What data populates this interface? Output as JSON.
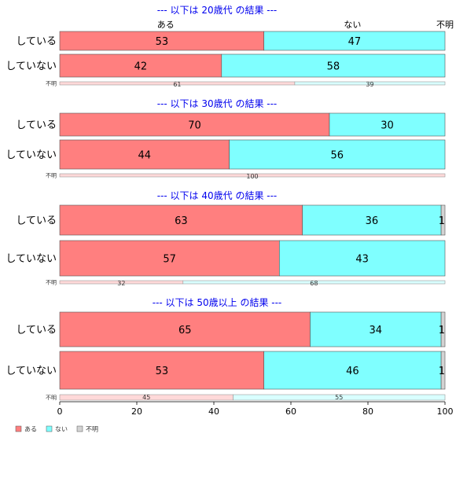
{
  "chart_data": {
    "type": "bar",
    "orientation": "horizontal",
    "stacked": true,
    "percent": true,
    "xlim": [
      0,
      100
    ],
    "xticks": [
      "0",
      "20",
      "40",
      "60",
      "80",
      "100"
    ],
    "column_headers": [
      "ある",
      "ない",
      "不明"
    ],
    "legend": {
      "placement": "bottom-left",
      "items": [
        {
          "label": "ある",
          "color": "#ff7f7f"
        },
        {
          "label": "ない",
          "color": "#7fffff"
        },
        {
          "label": "不明",
          "color": "#d3d3d3"
        }
      ]
    },
    "colors": {
      "aru": "#ff7f7f",
      "nai": "#7fffff",
      "fumei": "#d3d3d3",
      "aru_light": "#ffd9d9",
      "nai_light": "#d9ffff",
      "title": "#0000ee"
    },
    "groups": [
      {
        "title": "--- 以下は 20歳代 の結果 ---",
        "rows": [
          {
            "label": "している",
            "values": [
              53,
              47,
              0
            ],
            "small": false
          },
          {
            "label": "していない",
            "values": [
              42,
              58,
              0
            ],
            "small": false
          },
          {
            "label": "不明",
            "values": [
              61,
              39,
              0
            ],
            "small": true
          }
        ]
      },
      {
        "title": "--- 以下は 30歳代 の結果 ---",
        "rows": [
          {
            "label": "している",
            "values": [
              70,
              30,
              0
            ],
            "small": false
          },
          {
            "label": "していない",
            "values": [
              44,
              56,
              0
            ],
            "small": false
          },
          {
            "label": "不明",
            "values": [
              100,
              0,
              0
            ],
            "small": true
          }
        ]
      },
      {
        "title": "--- 以下は 40歳代 の結果 ---",
        "rows": [
          {
            "label": "している",
            "values": [
              63,
              36,
              1
            ],
            "small": false
          },
          {
            "label": "していない",
            "values": [
              57,
              43,
              0
            ],
            "small": false
          },
          {
            "label": "不明",
            "values": [
              32,
              68,
              0
            ],
            "small": true
          }
        ]
      },
      {
        "title": "--- 以下は 50歳以上 の結果 ---",
        "rows": [
          {
            "label": "している",
            "values": [
              65,
              34,
              1
            ],
            "small": false
          },
          {
            "label": "していない",
            "values": [
              53,
              46,
              1
            ],
            "small": false
          },
          {
            "label": "不明",
            "values": [
              45,
              55,
              0
            ],
            "small": true
          }
        ]
      }
    ]
  }
}
